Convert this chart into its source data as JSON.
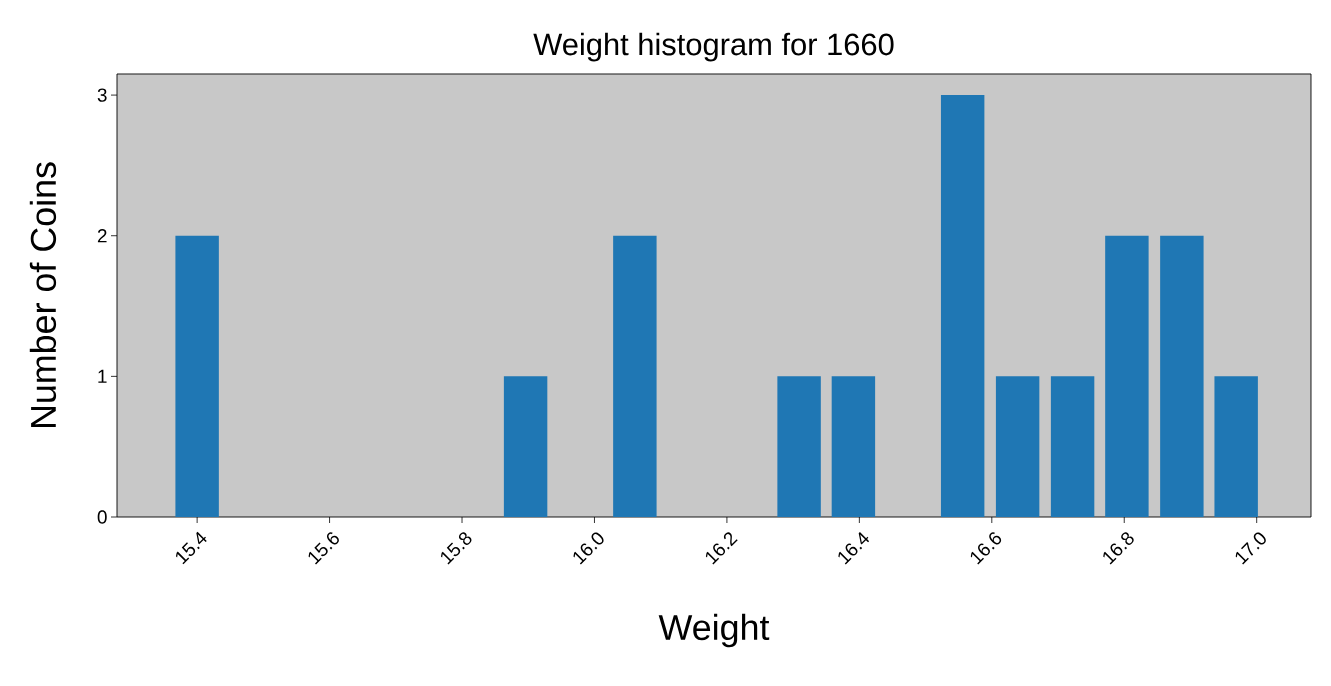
{
  "chart_data": {
    "type": "bar",
    "title": "Weight histogram for 1660",
    "xlabel": "Weight",
    "ylabel": "Number of Coins",
    "x": [
      15.4,
      15.896,
      16.061,
      16.309,
      16.391,
      16.556,
      16.639,
      16.722,
      16.804,
      16.887,
      16.969
    ],
    "values": [
      2,
      1,
      2,
      1,
      1,
      3,
      1,
      1,
      2,
      2,
      1
    ],
    "color": "#1f77b4",
    "xlim": [
      15.279,
      17.082
    ],
    "ylim": [
      0,
      3.15
    ],
    "xticks": [
      {
        "value": 15.4,
        "label": "15.4"
      },
      {
        "value": 15.6,
        "label": "15.6"
      },
      {
        "value": 15.8,
        "label": "15.8"
      },
      {
        "value": 16.0,
        "label": "16.0"
      },
      {
        "value": 16.2,
        "label": "16.2"
      },
      {
        "value": 16.4,
        "label": "16.4"
      },
      {
        "value": 16.6,
        "label": "16.6"
      },
      {
        "value": 16.8,
        "label": "16.8"
      },
      {
        "value": 17.0,
        "label": "17.0"
      }
    ],
    "yticks": [
      0,
      1,
      2,
      3
    ]
  }
}
